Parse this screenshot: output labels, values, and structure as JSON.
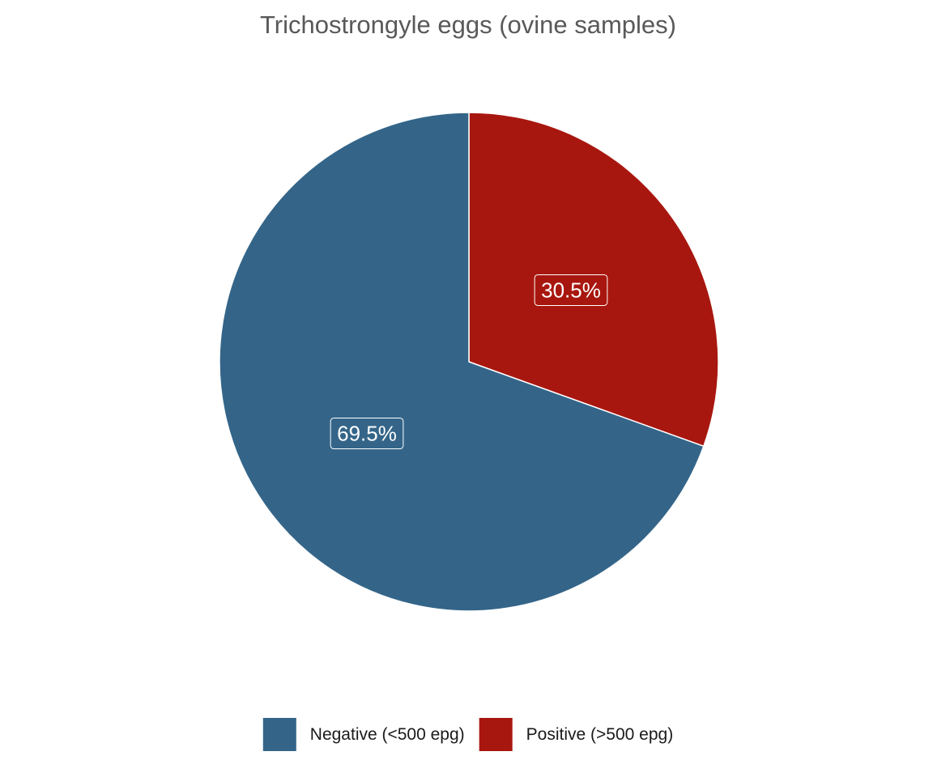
{
  "chart_data": {
    "type": "pie",
    "title": "Trichostrongyle eggs (ovine samples)",
    "start_angle_deg": 0,
    "direction": "clockwise",
    "slices": [
      {
        "name": "Positive (>500 epg)",
        "value": 30.5,
        "label": "30.5%",
        "color": "#a8170f"
      },
      {
        "name": "Negative (<500 epg)",
        "value": 69.5,
        "label": "69.5%",
        "color": "#346589"
      }
    ],
    "legend": {
      "position": "bottom",
      "entries": [
        "Negative (<500 epg)",
        "Positive (>500 epg)"
      ]
    }
  }
}
